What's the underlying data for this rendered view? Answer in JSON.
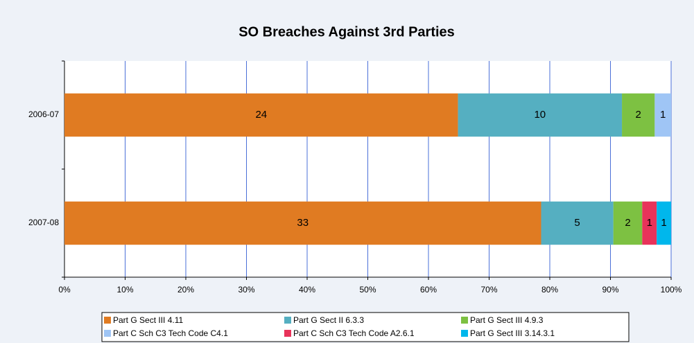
{
  "chart_data": {
    "type": "bar",
    "orientation": "horizontal",
    "stacked": "percent",
    "title": "SO Breaches Against 3rd Parties",
    "categories": [
      "2006-07",
      "2007-08"
    ],
    "series": [
      {
        "name": "Part G Sect III 4.11",
        "color": "#e07b22",
        "values": [
          24,
          33
        ]
      },
      {
        "name": "Part G Sect II 6.3.3",
        "color": "#55afc1",
        "values": [
          10,
          5
        ]
      },
      {
        "name": "Part G Sect III 4.9.3",
        "color": "#7dc142",
        "values": [
          2,
          2
        ]
      },
      {
        "name": "Part C Sch C3 Tech Code C4.1",
        "color": "#9fc5f5",
        "values": [
          1,
          null
        ]
      },
      {
        "name": "Part C Sch C3 Tech Code A2.6.1",
        "color": "#e8335a",
        "values": [
          null,
          1
        ]
      },
      {
        "name": "Part G Sect III 3.14.3.1",
        "color": "#00b7ec",
        "values": [
          null,
          1
        ]
      }
    ],
    "xlim": [
      0,
      100
    ],
    "xticks": [
      {
        "value": 0,
        "label": "0%"
      },
      {
        "value": 10,
        "label": "10%"
      },
      {
        "value": 20,
        "label": "20%"
      },
      {
        "value": 30,
        "label": "30%"
      },
      {
        "value": 40,
        "label": "40%"
      },
      {
        "value": 50,
        "label": "50%"
      },
      {
        "value": 60,
        "label": "60%"
      },
      {
        "value": 70,
        "label": "70%"
      },
      {
        "value": 80,
        "label": "80%"
      },
      {
        "value": 90,
        "label": "90%"
      },
      {
        "value": 100,
        "label": "100%"
      }
    ],
    "grid": true,
    "legend": "bottom"
  }
}
